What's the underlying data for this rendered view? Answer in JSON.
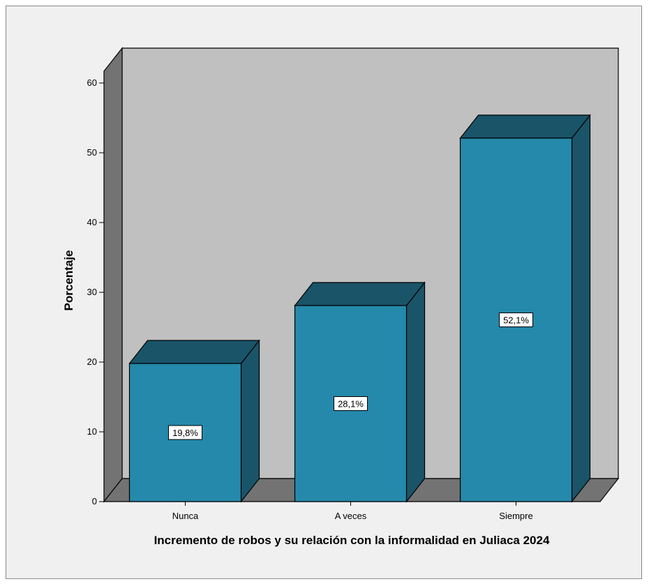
{
  "chart_data": {
    "type": "bar",
    "categories": [
      "Nunca",
      "A veces",
      "Siempre"
    ],
    "values": [
      19.8,
      28.1,
      52.1
    ],
    "data_labels": [
      "19,8%",
      "28,1%",
      "52,1%"
    ],
    "xlabel": "Incremento de robos y su relación con la informalidad en Juliaca 2024",
    "ylabel": "Porcentaje",
    "ylim": [
      0,
      65
    ],
    "yticks": [
      0,
      10,
      20,
      30,
      40,
      50,
      60
    ],
    "style": "3d",
    "grid": false,
    "colors": {
      "bar_front": "#2489ab",
      "bar_top": "#1a5468",
      "bar_side": "#1a5468",
      "wall": "#c0c0c0",
      "floor": "#737373",
      "side_wall": "#737373",
      "background": "#f0f0f0"
    }
  }
}
